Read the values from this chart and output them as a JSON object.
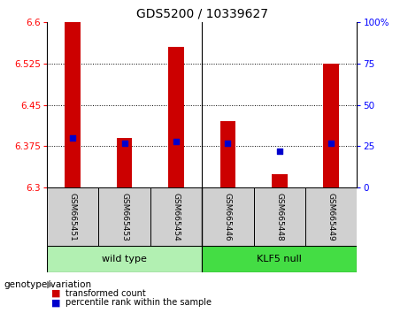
{
  "title": "GDS5200 / 10339627",
  "samples": [
    "GSM665451",
    "GSM665453",
    "GSM665454",
    "GSM665446",
    "GSM665448",
    "GSM665449"
  ],
  "transformed_count": [
    6.6,
    6.39,
    6.555,
    6.42,
    6.325,
    6.525
  ],
  "percentile_rank": [
    30,
    27,
    28,
    27,
    22,
    27
  ],
  "ylim_left": [
    6.3,
    6.6
  ],
  "yticks_left": [
    6.3,
    6.375,
    6.45,
    6.525,
    6.6
  ],
  "ylim_right": [
    0,
    100
  ],
  "yticks_right": [
    0,
    25,
    50,
    75,
    100
  ],
  "bar_color": "#cc0000",
  "dot_color": "#0000cc",
  "bar_bottom": 6.3,
  "group_boundary": 3,
  "wt_color": "#b2f0b2",
  "klf_color": "#44dd44",
  "sample_box_color": "#d0d0d0",
  "legend_items": [
    {
      "label": "transformed count",
      "color": "#cc0000"
    },
    {
      "label": "percentile rank within the sample",
      "color": "#0000cc"
    }
  ],
  "title_fontsize": 10,
  "tick_fontsize": 7.5,
  "sample_fontsize": 6.5,
  "group_fontsize": 8,
  "legend_fontsize": 7,
  "genotype_fontsize": 7.5
}
